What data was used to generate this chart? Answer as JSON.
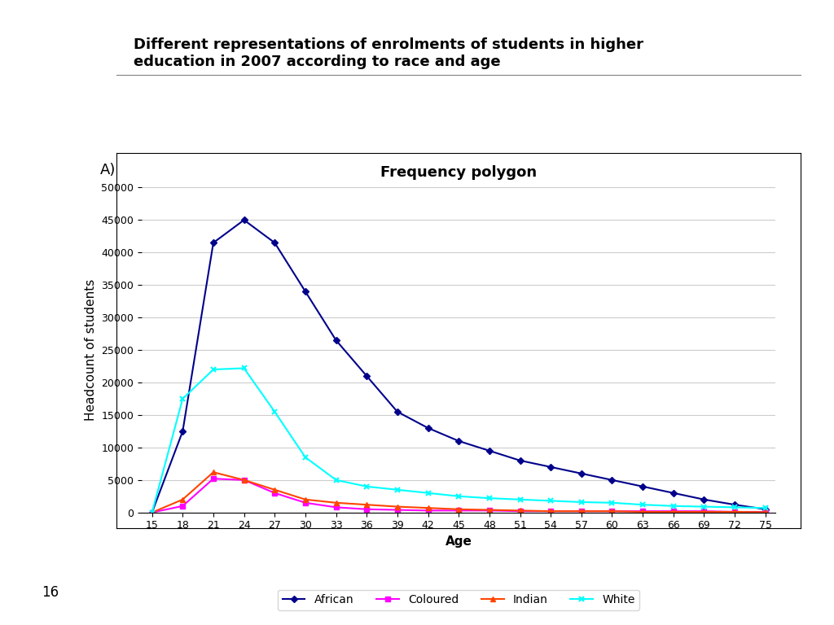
{
  "title": "Different representations of enrolments of students in higher\neducation in 2007 according to race and age",
  "chart_title": "Frequency polygon",
  "xlabel": "Age",
  "ylabel": "Headcount of students",
  "ages": [
    15,
    18,
    21,
    24,
    27,
    30,
    33,
    36,
    39,
    42,
    45,
    48,
    51,
    54,
    57,
    60,
    63,
    66,
    69,
    72,
    75
  ],
  "african": [
    0,
    12500,
    41500,
    45000,
    41500,
    34000,
    26500,
    21000,
    15500,
    13000,
    11000,
    9500,
    8000,
    7000,
    6000,
    5000,
    4000,
    3000,
    2000,
    1200,
    500
  ],
  "coloured": [
    0,
    1000,
    5200,
    5000,
    3000,
    1500,
    800,
    500,
    400,
    300,
    300,
    300,
    200,
    200,
    200,
    200,
    200,
    200,
    200,
    100,
    100
  ],
  "indian": [
    0,
    2000,
    6200,
    5000,
    3500,
    2000,
    1500,
    1200,
    900,
    700,
    500,
    400,
    300,
    200,
    200,
    200,
    100,
    100,
    100,
    100,
    50
  ],
  "white": [
    0,
    17500,
    22000,
    22200,
    15500,
    8500,
    5000,
    4000,
    3500,
    3000,
    2500,
    2200,
    2000,
    1800,
    1600,
    1500,
    1200,
    1000,
    900,
    800,
    700
  ],
  "african_color": "#00008B",
  "coloured_color": "#FF00FF",
  "indian_color": "#FF4500",
  "white_color": "#00FFFF",
  "ylim": [
    0,
    50000
  ],
  "yticks": [
    0,
    5000,
    10000,
    15000,
    20000,
    25000,
    30000,
    35000,
    40000,
    45000,
    50000
  ],
  "background_color": "#FFFFFF",
  "plot_bg_color": "#FFFFFF",
  "grid_color": "#CCCCCC",
  "label_fontsize": 11,
  "title_fontsize": 14,
  "page_number": "16"
}
